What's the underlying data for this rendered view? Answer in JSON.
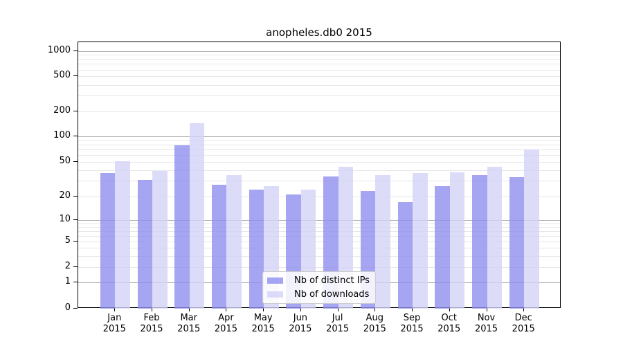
{
  "title": "anopheles.db0 2015",
  "chart_data": {
    "type": "bar",
    "title": "anopheles.db0 2015",
    "yscale": "symlog",
    "grid": true,
    "legend_position": "lower center",
    "categories": [
      "Jan",
      "Feb",
      "Mar",
      "Apr",
      "May",
      "Jun",
      "Jul",
      "Aug",
      "Sep",
      "Oct",
      "Nov",
      "Dec"
    ],
    "year": "2015",
    "y_ticks": [
      0,
      1,
      2,
      5,
      10,
      20,
      50,
      100,
      200,
      500,
      1000
    ],
    "ylim": [
      0,
      1250
    ],
    "series": [
      {
        "name": "Nb of distinct IPs",
        "color": "rgba(142,142,239,0.8)",
        "values": [
          37,
          31,
          78,
          27,
          24,
          21,
          34,
          23,
          17,
          26,
          35,
          33
        ]
      },
      {
        "name": "Nb of downloads",
        "color": "rgba(211,211,247,0.8)",
        "values": [
          51,
          39,
          143,
          35,
          26,
          24,
          44,
          35,
          37,
          38,
          44,
          70
        ]
      }
    ]
  },
  "colors": {
    "major_grid": "#b0b0b0",
    "minor_grid": "#e7e7e7",
    "spine": "#000000",
    "background": "#ffffff"
  }
}
